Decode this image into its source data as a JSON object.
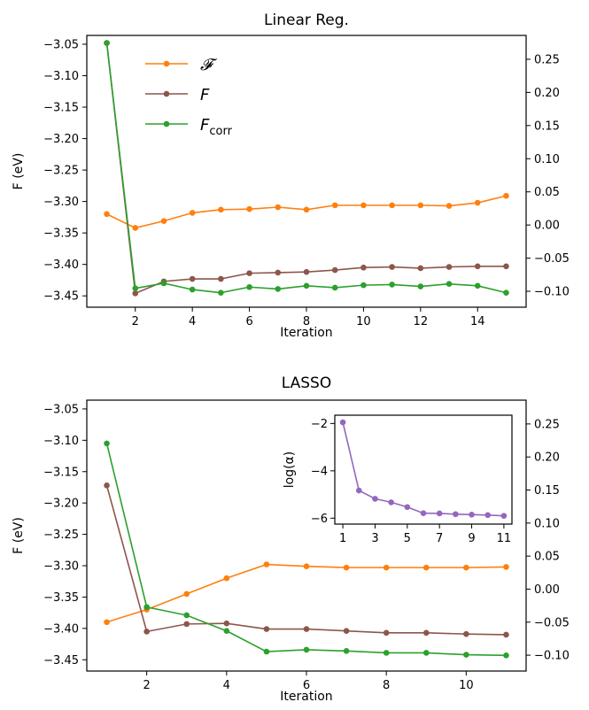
{
  "chart_data": [
    {
      "type": "line",
      "title": "Linear Reg.",
      "xlabel": "Iteration",
      "ylabel": "F (eV)",
      "x": [
        1,
        2,
        3,
        4,
        5,
        6,
        7,
        8,
        9,
        10,
        11,
        12,
        13,
        14,
        15
      ],
      "xticks": [
        2,
        4,
        6,
        8,
        10,
        12,
        14
      ],
      "xlim": [
        0.3,
        15.7
      ],
      "ylim": [
        -3.468,
        -3.036
      ],
      "yticks": [
        -3.05,
        -3.1,
        -3.15,
        -3.2,
        -3.25,
        -3.3,
        -3.35,
        -3.4,
        -3.45
      ],
      "ytick_labels": [
        "−3.05",
        "−3.10",
        "−3.15",
        "−3.20",
        "−3.25",
        "−3.30",
        "−3.35",
        "−3.40",
        "−3.45"
      ],
      "y2lim": [
        -0.124,
        0.286
      ],
      "y2ticks": [
        0.25,
        0.2,
        0.15,
        0.1,
        0.05,
        0.0,
        -0.05,
        -0.1
      ],
      "y2tick_labels": [
        "0.25",
        "0.20",
        "0.15",
        "0.10",
        "0.05",
        "0.00",
        "−0.05",
        "−0.10"
      ],
      "legend_position": "top-left",
      "series": [
        {
          "name": "𝓕",
          "color": "#ff7f0e",
          "axis": "left",
          "values": [
            -3.32,
            -3.342,
            -3.331,
            -3.318,
            -3.313,
            -3.312,
            -3.309,
            -3.313,
            -3.306,
            -3.306,
            -3.306,
            -3.306,
            -3.307,
            -3.302,
            -3.291
          ]
        },
        {
          "name": "F",
          "color": "#8c564b",
          "axis": "left",
          "values": [
            -3.048,
            -3.446,
            -3.427,
            -3.423,
            -3.423,
            -3.414,
            -3.413,
            -3.412,
            -3.409,
            -3.405,
            -3.404,
            -3.406,
            -3.404,
            -3.403,
            -3.403
          ]
        },
        {
          "name": "F",
          "name_sub": "corr",
          "color": "#2ca02c",
          "axis": "left",
          "values": [
            -3.048,
            -3.438,
            -3.43,
            -3.44,
            -3.445,
            -3.436,
            -3.439,
            -3.434,
            -3.437,
            -3.433,
            -3.432,
            -3.435,
            -3.431,
            -3.434,
            -3.445
          ]
        }
      ]
    },
    {
      "type": "line",
      "title": "LASSO",
      "xlabel": "Iteration",
      "ylabel": "F (eV)",
      "x": [
        1,
        2,
        3,
        4,
        5,
        6,
        7,
        8,
        9,
        10,
        11
      ],
      "xticks": [
        2,
        4,
        6,
        8,
        10
      ],
      "xlim": [
        0.5,
        11.5
      ],
      "ylim": [
        -3.468,
        -3.036
      ],
      "yticks": [
        -3.05,
        -3.1,
        -3.15,
        -3.2,
        -3.25,
        -3.3,
        -3.35,
        -3.4,
        -3.45
      ],
      "ytick_labels": [
        "−3.05",
        "−3.10",
        "−3.15",
        "−3.20",
        "−3.25",
        "−3.30",
        "−3.35",
        "−3.40",
        "−3.45"
      ],
      "y2lim": [
        -0.124,
        0.286
      ],
      "y2ticks": [
        0.25,
        0.2,
        0.15,
        0.1,
        0.05,
        0.0,
        -0.05,
        -0.1
      ],
      "y2tick_labels": [
        "0.25",
        "0.20",
        "0.15",
        "0.10",
        "0.05",
        "0.00",
        "−0.05",
        "−0.10"
      ],
      "series": [
        {
          "color": "#ff7f0e",
          "axis": "left",
          "values": [
            -3.39,
            -3.37,
            -3.345,
            -3.32,
            -3.298,
            -3.301,
            -3.303,
            -3.303,
            -3.303,
            -3.303,
            -3.302
          ]
        },
        {
          "color": "#8c564b",
          "axis": "left",
          "values": [
            -3.172,
            -3.405,
            -3.393,
            -3.392,
            -3.401,
            -3.401,
            -3.404,
            -3.407,
            -3.407,
            -3.409,
            -3.41
          ]
        },
        {
          "color": "#2ca02c",
          "axis": "left",
          "values": [
            -3.105,
            -3.366,
            -3.379,
            -3.404,
            -3.437,
            -3.434,
            -3.436,
            -3.439,
            -3.439,
            -3.442,
            -3.443
          ]
        }
      ],
      "inset": {
        "type": "line",
        "ylabel": "log(α)",
        "x": [
          1,
          2,
          3,
          4,
          5,
          6,
          7,
          8,
          9,
          10,
          11
        ],
        "xticks": [
          1,
          3,
          5,
          7,
          9,
          11
        ],
        "xlim": [
          0.5,
          11.5
        ],
        "ylim": [
          -6.25,
          -1.65
        ],
        "yticks": [
          -2,
          -4,
          -6
        ],
        "ytick_labels": [
          "−2",
          "−4",
          "−6"
        ],
        "series": [
          {
            "color": "#9467bd",
            "values": [
              -1.95,
              -4.83,
              -5.18,
              -5.33,
              -5.53,
              -5.79,
              -5.8,
              -5.83,
              -5.85,
              -5.87,
              -5.9
            ]
          }
        ]
      }
    }
  ]
}
